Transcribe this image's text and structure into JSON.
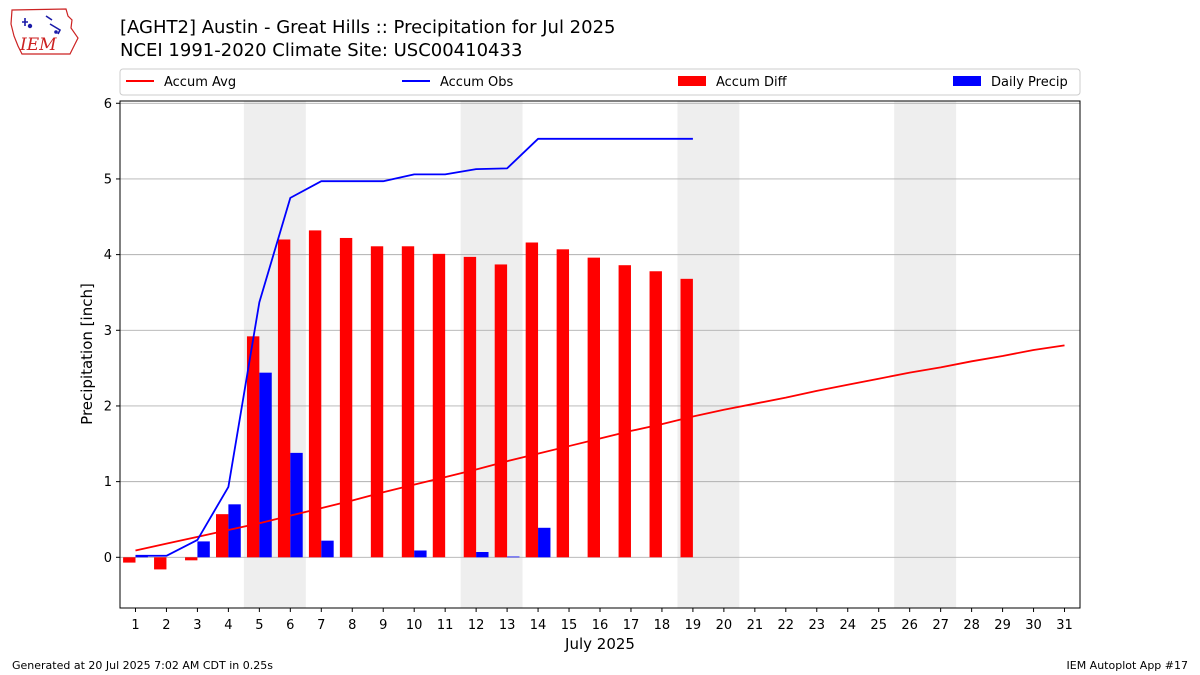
{
  "header": {
    "title_line1": "[AGHT2] Austin - Great Hills :: Precipitation for Jul 2025",
    "title_line2": "NCEI 1991-2020 Climate Site: USC00410433",
    "logo_text": "IEM"
  },
  "footer": {
    "generated": "Generated at 20 Jul 2025 7:02 AM CDT in 0.25s",
    "app": "IEM Autoplot App #17"
  },
  "colors": {
    "avg": "#ff0000",
    "obs": "#0000ff",
    "diff": "#ff0000",
    "daily": "#0000ff",
    "weekend_shade": "#eeeeee",
    "grid": "#b0b0b0"
  },
  "chart_data": {
    "type": "bar",
    "xlabel": "July 2025",
    "ylabel": "Precipitation [inch]",
    "xlim": [
      0.5,
      31.5
    ],
    "ylim": [
      -0.67,
      6.03
    ],
    "yticks": [
      0,
      1,
      2,
      3,
      4,
      5,
      6
    ],
    "grid": "horizontal",
    "legend_position": "top",
    "categories": [
      "1",
      "2",
      "3",
      "4",
      "5",
      "6",
      "7",
      "8",
      "9",
      "10",
      "11",
      "12",
      "13",
      "14",
      "15",
      "16",
      "17",
      "18",
      "19",
      "20",
      "21",
      "22",
      "23",
      "24",
      "25",
      "26",
      "27",
      "28",
      "29",
      "30",
      "31"
    ],
    "shaded_days": [
      [
        4.5,
        6.5
      ],
      [
        11.5,
        13.5
      ],
      [
        18.5,
        20.5
      ],
      [
        25.5,
        27.5
      ]
    ],
    "series": [
      {
        "name": "Accum Avg",
        "kind": "line",
        "x": [
          1,
          2,
          3,
          4,
          5,
          6,
          7,
          8,
          9,
          10,
          11,
          12,
          13,
          14,
          15,
          16,
          17,
          18,
          19,
          20,
          21,
          22,
          23,
          24,
          25,
          26,
          27,
          28,
          29,
          30,
          31
        ],
        "values": [
          0.09,
          0.18,
          0.27,
          0.36,
          0.45,
          0.55,
          0.65,
          0.75,
          0.86,
          0.96,
          1.06,
          1.16,
          1.27,
          1.37,
          1.47,
          1.57,
          1.67,
          1.76,
          1.86,
          1.95,
          2.03,
          2.11,
          2.2,
          2.28,
          2.36,
          2.44,
          2.51,
          2.59,
          2.66,
          2.74,
          2.8
        ]
      },
      {
        "name": "Accum Obs",
        "kind": "line",
        "x": [
          1,
          2,
          3,
          4,
          5,
          6,
          7,
          8,
          9,
          10,
          11,
          12,
          13,
          14,
          15,
          16,
          17,
          18,
          19
        ],
        "values": [
          0.02,
          0.02,
          0.23,
          0.93,
          3.37,
          4.75,
          4.97,
          4.97,
          4.97,
          5.06,
          5.06,
          5.13,
          5.14,
          5.53,
          5.53,
          5.53,
          5.53,
          5.53,
          5.53
        ]
      },
      {
        "name": "Accum Diff",
        "kind": "bar",
        "x": [
          1,
          2,
          3,
          4,
          5,
          6,
          7,
          8,
          9,
          10,
          11,
          12,
          13,
          14,
          15,
          16,
          17,
          18,
          19
        ],
        "values": [
          -0.07,
          -0.16,
          -0.04,
          0.57,
          2.92,
          4.2,
          4.32,
          4.22,
          4.11,
          4.11,
          4.01,
          3.97,
          3.87,
          4.16,
          4.07,
          3.96,
          3.86,
          3.78,
          3.68
        ]
      },
      {
        "name": "Daily Precip",
        "kind": "bar",
        "x": [
          1,
          2,
          3,
          4,
          5,
          6,
          7,
          8,
          9,
          10,
          11,
          12,
          13,
          14,
          15,
          16,
          17,
          18,
          19
        ],
        "values": [
          0.02,
          0.0,
          0.21,
          0.7,
          2.44,
          1.38,
          0.22,
          0.0,
          0.0,
          0.09,
          0.0,
          0.07,
          0.01,
          0.39,
          0.0,
          0.0,
          0.0,
          0.0,
          0.0
        ]
      }
    ]
  }
}
